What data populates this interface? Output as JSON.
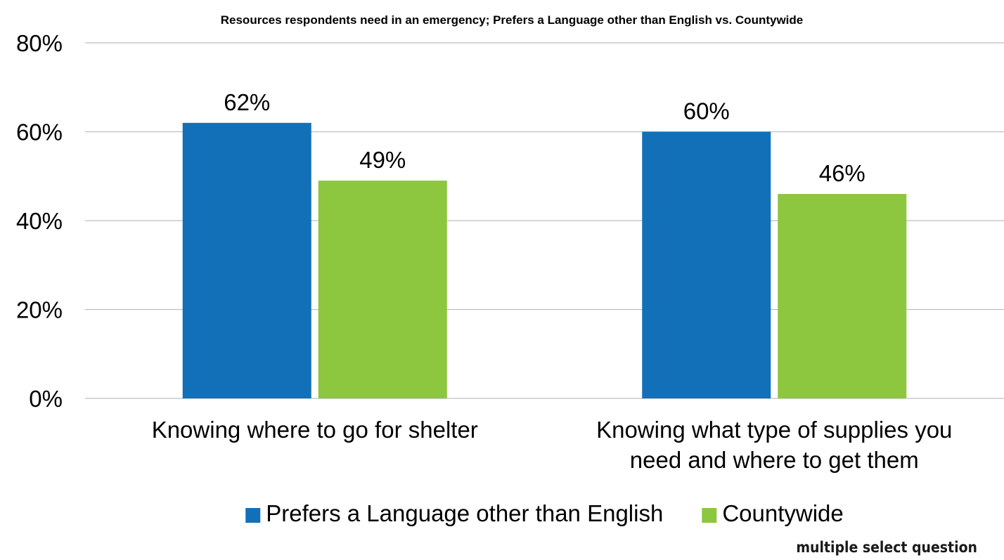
{
  "chart_data": {
    "type": "bar",
    "title": "Resources respondents need in an emergency; Prefers a Language other than English vs. Countywide",
    "categories": [
      [
        "Knowing where to go for shelter"
      ],
      [
        "Knowing what type of supplies you",
        "need and where to get them"
      ]
    ],
    "series": [
      {
        "name": "Prefers a Language other than English",
        "color": "#1170b8",
        "values": [
          62,
          60
        ],
        "labels": [
          "62%",
          "60%"
        ]
      },
      {
        "name": "Countywide",
        "color": "#8dc63f",
        "values": [
          49,
          46
        ],
        "labels": [
          "49%",
          "46%"
        ]
      }
    ],
    "yticks": [
      "0%",
      "20%",
      "40%",
      "60%",
      "80%"
    ],
    "ylim": [
      0,
      80
    ],
    "grid": true,
    "legend": "bottom",
    "note": "multiple select question"
  }
}
